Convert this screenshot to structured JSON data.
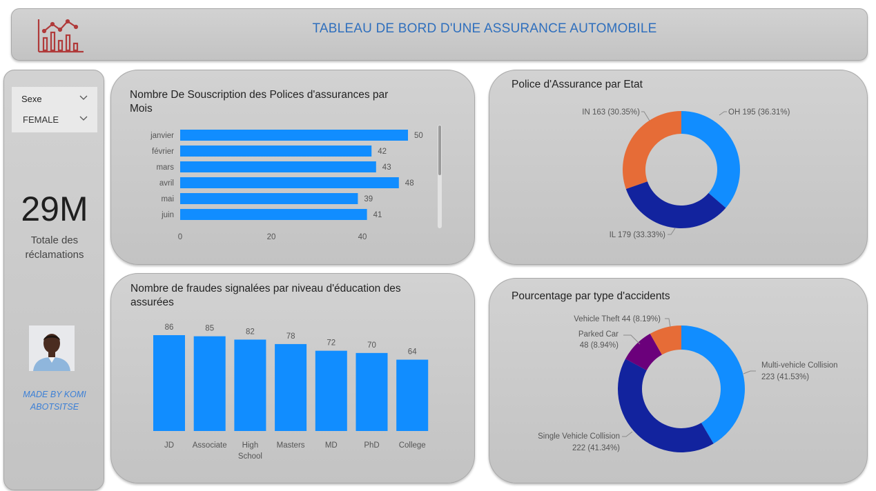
{
  "header": {
    "title": "TABLEAU DE BORD D'UNE ASSURANCE AUTOMOBILE",
    "logo_icon": "bar-line-chart-icon"
  },
  "filters": {
    "field_label": "Sexe",
    "selected_value": "FEMALE"
  },
  "kpi": {
    "value": "29M",
    "label_line1": "Totale des",
    "label_line2": "réclamations"
  },
  "credit": {
    "line1": "MADE BY KOMI",
    "line2": "ABOTSITSE"
  },
  "colors": {
    "bar": "#118dff",
    "orange": "#e66c37",
    "navy": "#12239e",
    "purple": "#6b007b"
  },
  "chart_data": [
    {
      "type": "bar",
      "orientation": "horizontal",
      "title_line1": "Nombre De Souscription des Polices d'assurances par",
      "title_line2": "Mois",
      "categories": [
        "janvier",
        "février",
        "mars",
        "avril",
        "mai",
        "juin"
      ],
      "values": [
        50,
        42,
        43,
        48,
        39,
        41
      ],
      "x_ticks": [
        0,
        20,
        40
      ],
      "xlim": [
        0,
        50
      ]
    },
    {
      "type": "pie",
      "donut": true,
      "title": "Police d'Assurance par Etat",
      "slices": [
        {
          "label": "OH",
          "value": 195,
          "percent": "36.31%",
          "color": "#118dff",
          "text": "OH 195 (36.31%)"
        },
        {
          "label": "IL",
          "value": 179,
          "percent": "33.33%",
          "color": "#12239e",
          "text": "IL 179 (33.33%)"
        },
        {
          "label": "IN",
          "value": 163,
          "percent": "30.35%",
          "color": "#e66c37",
          "text": "IN 163 (30.35%)"
        }
      ]
    },
    {
      "type": "bar",
      "orientation": "vertical",
      "title_line1": "Nombre de fraudes signalées par niveau d'éducation des",
      "title_line2": "assurées",
      "categories": [
        "JD",
        "Associate",
        "High School",
        "Masters",
        "MD",
        "PhD",
        "College"
      ],
      "category_lines": [
        [
          "JD"
        ],
        [
          "Associate"
        ],
        [
          "High",
          "School"
        ],
        [
          "Masters"
        ],
        [
          "MD"
        ],
        [
          "PhD"
        ],
        [
          "College"
        ]
      ],
      "values": [
        86,
        85,
        82,
        78,
        72,
        70,
        64
      ],
      "ylim": [
        0,
        86
      ]
    },
    {
      "type": "pie",
      "donut": true,
      "title": "Pourcentage par type d'accidents",
      "slices": [
        {
          "label": "Multi-vehicle Collision",
          "value": 223,
          "percent": "41.53%",
          "color": "#118dff",
          "text1": "Multi-vehicle Collision",
          "text2": "223 (41.53%)"
        },
        {
          "label": "Single Vehicle Collision",
          "value": 222,
          "percent": "41.34%",
          "color": "#12239e",
          "text1": "Single Vehicle Collision",
          "text2": "222 (41.34%)"
        },
        {
          "label": "Parked Car",
          "value": 48,
          "percent": "8.94%",
          "color": "#6b007b",
          "text1": "Parked Car",
          "text2": "48 (8.94%)"
        },
        {
          "label": "Vehicle Theft",
          "value": 44,
          "percent": "8.19%",
          "color": "#e66c37",
          "text1": "Vehicle Theft 44 (8.19%)",
          "text2": ""
        }
      ]
    }
  ]
}
